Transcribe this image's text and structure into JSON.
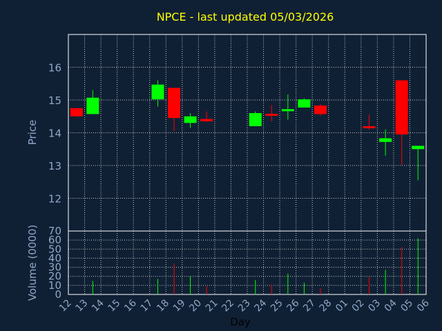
{
  "chart_data": {
    "type": "candlestick",
    "title": "NPCE - last updated 05/03/2026",
    "xlabel": "Day",
    "price_ylabel": "Price",
    "volume_ylabel": "Volume (0000)",
    "x_ticks": [
      "12",
      "13",
      "14",
      "15",
      "16",
      "17",
      "18",
      "19",
      "20",
      "21",
      "22",
      "23",
      "24",
      "25",
      "26",
      "27",
      "28",
      "01",
      "02",
      "03",
      "04",
      "05",
      "06"
    ],
    "price_yticks": [
      12,
      13,
      14,
      15,
      16
    ],
    "price_ylim": [
      11.0,
      17.0
    ],
    "volume_yticks": [
      0,
      10,
      20,
      30,
      40,
      50,
      60,
      70
    ],
    "volume_ylim": [
      0,
      70
    ],
    "grid": true,
    "colors": {
      "background": "#102034",
      "up": "#00ff00",
      "down": "#ff0000",
      "axis_text": "#8ea8c8",
      "title": "#ffff00",
      "xlabel": "#000000",
      "frame": "#ffffff",
      "grid": "#c8c8c8"
    },
    "candles": [
      {
        "day": "12",
        "open": 14.75,
        "high": 14.75,
        "low": 14.5,
        "close": 14.5
      },
      {
        "day": "13",
        "open": 14.57,
        "high": 15.3,
        "low": 14.57,
        "close": 15.07
      },
      {
        "day": "17",
        "open": 15.02,
        "high": 15.6,
        "low": 14.8,
        "close": 15.47
      },
      {
        "day": "18",
        "open": 15.37,
        "high": 15.37,
        "low": 14.05,
        "close": 14.45
      },
      {
        "day": "19",
        "open": 14.3,
        "high": 14.6,
        "low": 14.15,
        "close": 14.5
      },
      {
        "day": "20",
        "open": 14.42,
        "high": 14.65,
        "low": 14.33,
        "close": 14.35
      },
      {
        "day": "23",
        "open": 14.2,
        "high": 14.65,
        "low": 14.2,
        "close": 14.6
      },
      {
        "day": "24",
        "open": 14.58,
        "high": 14.85,
        "low": 14.35,
        "close": 14.55
      },
      {
        "day": "25",
        "open": 14.68,
        "high": 15.17,
        "low": 14.4,
        "close": 14.72
      },
      {
        "day": "26",
        "open": 14.77,
        "high": 15.05,
        "low": 14.77,
        "close": 15.02
      },
      {
        "day": "27",
        "open": 14.83,
        "high": 14.87,
        "low": 14.52,
        "close": 14.57
      },
      {
        "day": "02",
        "open": 14.2,
        "high": 14.55,
        "low": 14.1,
        "close": 14.15
      },
      {
        "day": "03",
        "open": 13.72,
        "high": 14.1,
        "low": 13.3,
        "close": 13.83
      },
      {
        "day": "04",
        "open": 15.6,
        "high": 15.6,
        "low": 13.02,
        "close": 13.95
      },
      {
        "day": "05",
        "open": 13.5,
        "high": 13.6,
        "low": 12.55,
        "close": 13.6
      }
    ],
    "volume": [
      {
        "day": "13",
        "value": 15,
        "direction": "up"
      },
      {
        "day": "17",
        "value": 17,
        "direction": "up"
      },
      {
        "day": "18",
        "value": 34,
        "direction": "down"
      },
      {
        "day": "19",
        "value": 20,
        "direction": "up"
      },
      {
        "day": "20",
        "value": 9,
        "direction": "down"
      },
      {
        "day": "23",
        "value": 16,
        "direction": "up"
      },
      {
        "day": "24",
        "value": 11,
        "direction": "down"
      },
      {
        "day": "25",
        "value": 23,
        "direction": "up"
      },
      {
        "day": "26",
        "value": 13,
        "direction": "up"
      },
      {
        "day": "27",
        "value": 7,
        "direction": "down"
      },
      {
        "day": "02",
        "value": 19,
        "direction": "down"
      },
      {
        "day": "03",
        "value": 27,
        "direction": "up"
      },
      {
        "day": "04",
        "value": 52,
        "direction": "down"
      },
      {
        "day": "05",
        "value": 62,
        "direction": "up"
      }
    ]
  }
}
